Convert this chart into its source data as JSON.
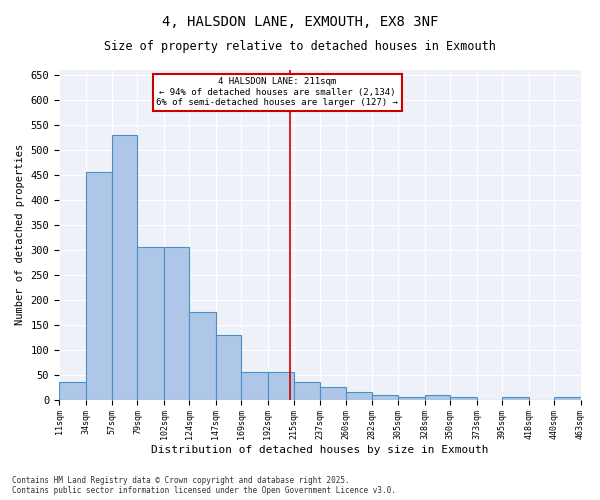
{
  "title": "4, HALSDON LANE, EXMOUTH, EX8 3NF",
  "subtitle": "Size of property relative to detached houses in Exmouth",
  "xlabel": "Distribution of detached houses by size in Exmouth",
  "ylabel": "Number of detached properties",
  "annotation_title": "4 HALSDON LANE: 211sqm",
  "annotation_line1": "← 94% of detached houses are smaller (2,134)",
  "annotation_line2": "6% of semi-detached houses are larger (127) →",
  "property_size": 211,
  "bin_edges": [
    11,
    34,
    57,
    79,
    102,
    124,
    147,
    169,
    192,
    215,
    237,
    260,
    282,
    305,
    328,
    350,
    373,
    395,
    418,
    440,
    463
  ],
  "bar_heights": [
    35,
    455,
    530,
    305,
    305,
    175,
    130,
    55,
    55,
    35,
    25,
    15,
    10,
    5,
    10,
    5,
    0,
    5,
    0,
    5
  ],
  "bar_color": "#aec6e8",
  "bar_edge_color": "#4a90c4",
  "vline_color": "#cc0000",
  "annotation_box_color": "#cc0000",
  "background_color": "#eef2f8",
  "ylim": [
    0,
    660
  ],
  "yticks": [
    0,
    50,
    100,
    150,
    200,
    250,
    300,
    350,
    400,
    450,
    500,
    550,
    600,
    650
  ],
  "footer_line1": "Contains HM Land Registry data © Crown copyright and database right 2025.",
  "footer_line2": "Contains public sector information licensed under the Open Government Licence v3.0."
}
